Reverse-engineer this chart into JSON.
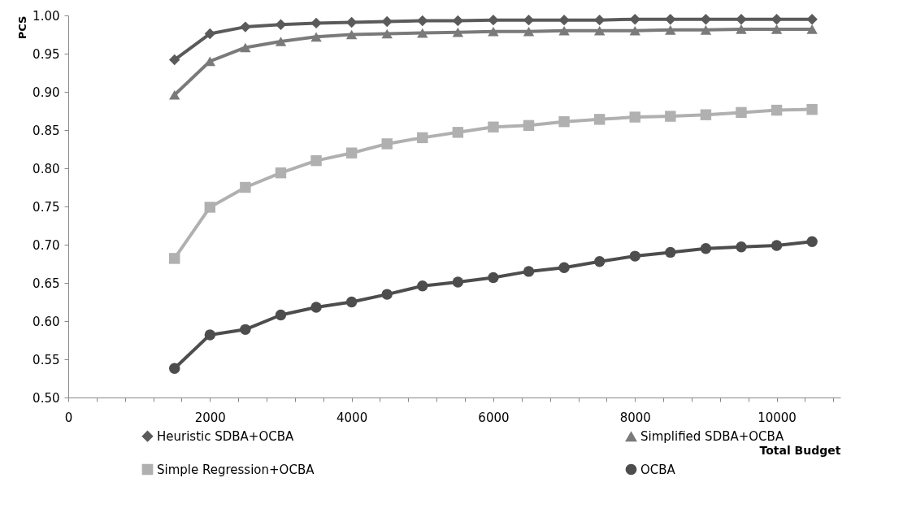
{
  "chart_data": {
    "type": "line",
    "xlabel": "Total Budget",
    "ylabel": "PCS",
    "x": [
      1500,
      2000,
      2500,
      3000,
      3500,
      4000,
      4500,
      5000,
      5500,
      6000,
      6500,
      7000,
      7500,
      8000,
      8500,
      9000,
      9500,
      10000,
      10500
    ],
    "series": [
      {
        "name": "Heuristic SDBA+OCBA",
        "color": "#5a5a5a",
        "marker": "diamond",
        "values": [
          0.942,
          0.976,
          0.985,
          0.988,
          0.99,
          0.991,
          0.992,
          0.993,
          0.993,
          0.994,
          0.994,
          0.994,
          0.994,
          0.995,
          0.995,
          0.995,
          0.995,
          0.995,
          0.995
        ]
      },
      {
        "name": "Simplified SDBA+OCBA",
        "color": "#7a7a7a",
        "marker": "triangle",
        "values": [
          0.896,
          0.94,
          0.958,
          0.966,
          0.972,
          0.975,
          0.976,
          0.977,
          0.978,
          0.979,
          0.979,
          0.98,
          0.98,
          0.98,
          0.981,
          0.981,
          0.982,
          0.982,
          0.982
        ]
      },
      {
        "name": "Simple Regression+OCBA",
        "color": "#b0b0b0",
        "marker": "square",
        "values": [
          0.682,
          0.749,
          0.775,
          0.794,
          0.81,
          0.82,
          0.832,
          0.84,
          0.847,
          0.854,
          0.856,
          0.861,
          0.864,
          0.867,
          0.868,
          0.87,
          0.873,
          0.876,
          0.877
        ]
      },
      {
        "name": "OCBA",
        "color": "#4d4d4d",
        "marker": "circle",
        "values": [
          0.538,
          0.582,
          0.589,
          0.608,
          0.618,
          0.625,
          0.635,
          0.646,
          0.651,
          0.657,
          0.665,
          0.67,
          0.678,
          0.685,
          0.69,
          0.695,
          0.697,
          0.699,
          0.704
        ]
      }
    ],
    "xlim": [
      0,
      10900
    ],
    "xticks": [
      0,
      {
        "value": 400,
        "label": null
      },
      {
        "value": 800,
        "label": null
      },
      {
        "value": 1200,
        "label": null
      },
      {
        "value": 1600,
        "label": null
      },
      2000,
      {
        "value": 2400,
        "label": null
      },
      {
        "value": 2800,
        "label": null
      },
      {
        "value": 3200,
        "label": null
      },
      {
        "value": 3600,
        "label": null
      },
      4000,
      {
        "value": 4400,
        "label": null
      },
      {
        "value": 4800,
        "label": null
      },
      {
        "value": 5200,
        "label": null
      },
      {
        "value": 5600,
        "label": null
      },
      6000,
      {
        "value": 6400,
        "label": null
      },
      {
        "value": 6800,
        "label": null
      },
      {
        "value": 7200,
        "label": null
      },
      {
        "value": 7600,
        "label": null
      },
      8000,
      {
        "value": 8400,
        "label": null
      },
      {
        "value": 8800,
        "label": null
      },
      {
        "value": 9200,
        "label": null
      },
      {
        "value": 9600,
        "label": null
      },
      10000,
      {
        "value": 10400,
        "label": null
      },
      {
        "value": 10800,
        "label": null
      }
    ],
    "ylim": [
      0.5,
      1.0
    ],
    "yticks": [
      {
        "value": 0.5,
        "label": "0.50"
      },
      {
        "value": 0.55,
        "label": "0.55"
      },
      {
        "value": 0.6,
        "label": "0.60"
      },
      {
        "value": 0.65,
        "label": "0.65"
      },
      {
        "value": 0.7,
        "label": "0.70"
      },
      {
        "value": 0.75,
        "label": "0.75"
      },
      {
        "value": 0.8,
        "label": "0.80"
      },
      {
        "value": 0.85,
        "label": "0.85"
      },
      {
        "value": 0.9,
        "label": "0.90"
      },
      {
        "value": 0.95,
        "label": "0.95"
      },
      {
        "value": 1.0,
        "label": "1.00"
      }
    ],
    "grid": false,
    "legend": "bottom",
    "line_style": "solid"
  }
}
